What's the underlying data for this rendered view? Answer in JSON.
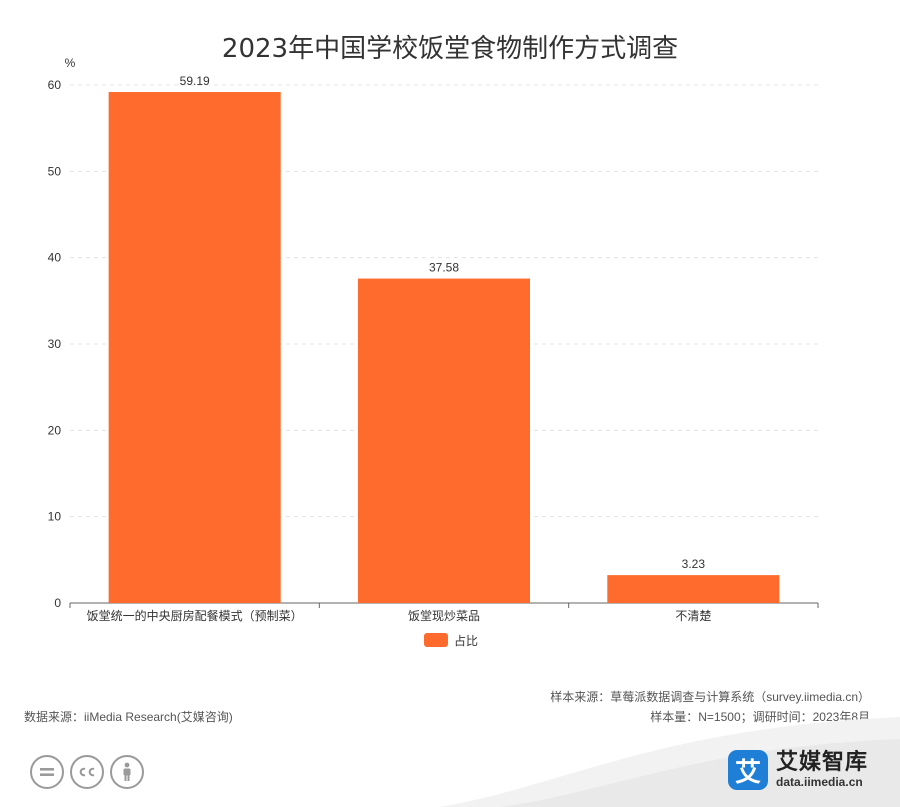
{
  "chart_data": {
    "type": "bar",
    "title": "2023年中国学校饭堂食物制作方式调查",
    "ylabel": "%",
    "ylim": [
      0,
      60
    ],
    "yticks": [
      0,
      10,
      20,
      30,
      40,
      50,
      60
    ],
    "categories": [
      "饭堂统一的中央厨房配餐模式（预制菜）",
      "饭堂现炒菜品",
      "不清楚"
    ],
    "series": [
      {
        "name": "占比",
        "values": [
          59.19,
          37.58,
          3.23
        ],
        "value_labels": [
          "59.19",
          "37.58",
          "3.23"
        ]
      }
    ],
    "colors": {
      "bar": "#FF6B2C",
      "grid": "#e3e3e3",
      "axis": "#666666"
    },
    "grid": true,
    "legend_position": "bottom-center"
  },
  "footer": {
    "source": "数据来源：iiMedia Research(艾媒咨询)",
    "sample_source": "样本来源：草莓派数据调查与计算系统（survey.iimedia.cn）",
    "sample_info": "样本量：N=1500；调研时间：2023年8月"
  },
  "brand": {
    "logo_glyph": "艾",
    "name": "艾媒智库",
    "url": "data.iimedia.cn",
    "logo_color": "#1F7FD6"
  },
  "license_icons": [
    "equal-icon",
    "cc-icon",
    "person-icon"
  ]
}
